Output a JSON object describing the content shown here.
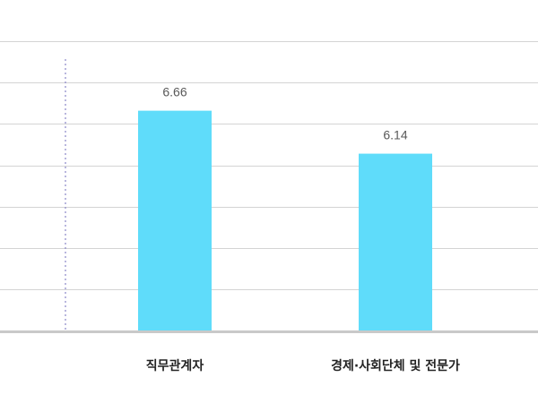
{
  "chart_data": {
    "type": "bar",
    "categories": [
      "직무관계자",
      "경제·사회단체 및 전문가"
    ],
    "values": [
      6.66,
      6.14
    ],
    "data_labels": [
      "6.66",
      "6.14"
    ],
    "ylim": [
      4,
      8
    ],
    "grid": true,
    "colors": {
      "bar": "#5fdcfa",
      "gridline": "#d4d4d4",
      "baseline": "#c9c9c9",
      "divider": "#8a87c9"
    }
  }
}
